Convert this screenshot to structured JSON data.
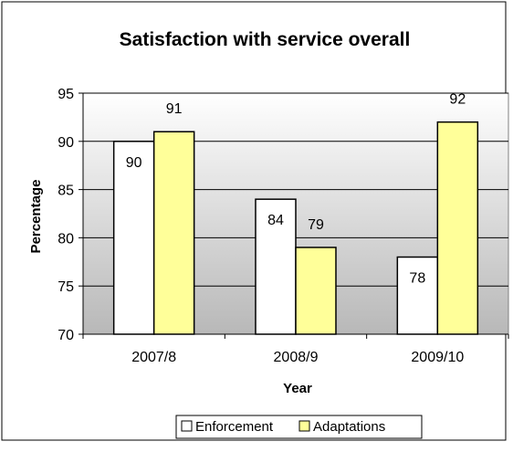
{
  "chart_data": {
    "type": "bar",
    "title": "Satisfaction with service overall",
    "xlabel": "Year",
    "ylabel": "Percentage",
    "categories": [
      "2007/8",
      "2008/9",
      "2009/10"
    ],
    "series": [
      {
        "name": "Enforcement",
        "values": [
          90,
          84,
          78
        ],
        "color": "#ffffff"
      },
      {
        "name": "Adaptations",
        "values": [
          91,
          79,
          92
        ],
        "color": "#ffff99"
      }
    ],
    "ylim": [
      70,
      95
    ],
    "yticks": [
      70,
      75,
      80,
      85,
      90,
      95
    ],
    "grid": true,
    "plot_background": "#c0c0c0",
    "legend_position": "bottom",
    "data_labels": true
  }
}
